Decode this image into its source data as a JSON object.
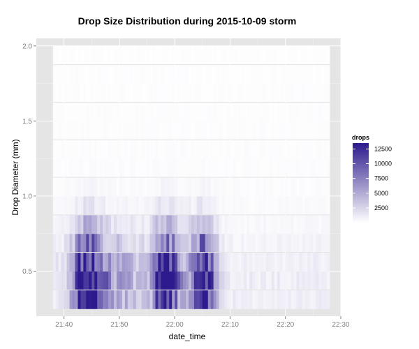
{
  "chart_data": {
    "type": "heatmap",
    "title": "Drop Size Distribution during 2015-10-09 storm",
    "xlabel": "date_time",
    "ylabel": "Drop Diameter (mm)",
    "xlim": [
      "21:35",
      "22:30"
    ],
    "ylim": [
      0.2,
      2.05
    ],
    "x_ticks": [
      "21:40",
      "21:50",
      "22:00",
      "22:10",
      "22:20",
      "22:30"
    ],
    "y_ticks": [
      "0.5",
      "1.0",
      "1.5",
      "2.0"
    ],
    "x_range": [
      "21:38",
      "22:28"
    ],
    "diameter_bins": [
      0.31,
      0.44,
      0.56,
      0.69,
      0.81,
      0.94,
      1.06,
      1.19,
      1.31,
      1.44,
      1.56,
      1.69,
      1.81,
      1.94
    ],
    "bin_width_mm": 0.125,
    "time_step_minutes": 0.5,
    "peaks": [
      {
        "time": "21:44",
        "diameter": 0.44,
        "drops": 12000
      },
      {
        "time": "21:58",
        "diameter": 0.44,
        "drops": 13000
      },
      {
        "time": "22:05",
        "diameter": 0.44,
        "drops": 12500
      }
    ],
    "color_scale": {
      "low": "#ffffff",
      "high": "#2d1a8c",
      "min": 0,
      "max": 13500
    },
    "legend": {
      "title": "drops",
      "labels": [
        "12500",
        "10000",
        "7500",
        "5000",
        "2500"
      ],
      "values": [
        12500,
        10000,
        7500,
        5000,
        2500
      ],
      "position": "right"
    },
    "grid": true
  }
}
